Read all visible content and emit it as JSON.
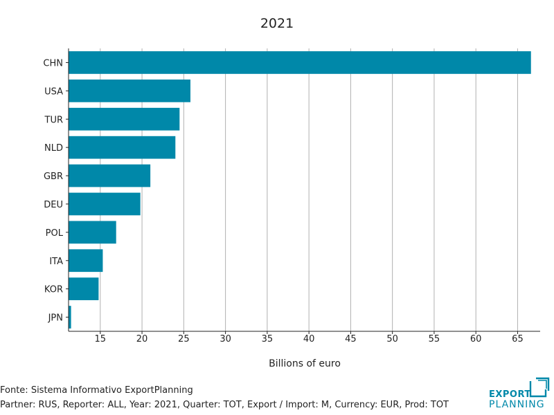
{
  "chart_data": {
    "type": "bar",
    "orientation": "horizontal",
    "title": "2021",
    "xlabel": "Billions of euro",
    "ylabel": "",
    "categories": [
      "CHN",
      "USA",
      "TUR",
      "NLD",
      "GBR",
      "DEU",
      "POL",
      "ITA",
      "KOR",
      "JPN"
    ],
    "values": [
      66.6,
      25.8,
      24.5,
      24.0,
      21.0,
      19.8,
      16.9,
      15.3,
      14.8,
      11.5
    ],
    "xlim": [
      11.2,
      67.7
    ],
    "xticks": [
      15,
      20,
      25,
      30,
      35,
      40,
      45,
      50,
      55,
      60,
      65
    ],
    "grid": "vertical",
    "bar_color": "#0088a9"
  },
  "footer": {
    "source": "Fonte: Sistema Informativo ExportPlanning",
    "meta": "Partner: RUS, Reporter: ALL, Year: 2021, Quarter: TOT, Export / Import: M, Currency: EUR, Prod: TOT"
  },
  "logo": {
    "line1": "EXPORT",
    "line2": "PLANNING",
    "color": "#0088a9",
    "icon": "export-planning-logo-icon"
  }
}
